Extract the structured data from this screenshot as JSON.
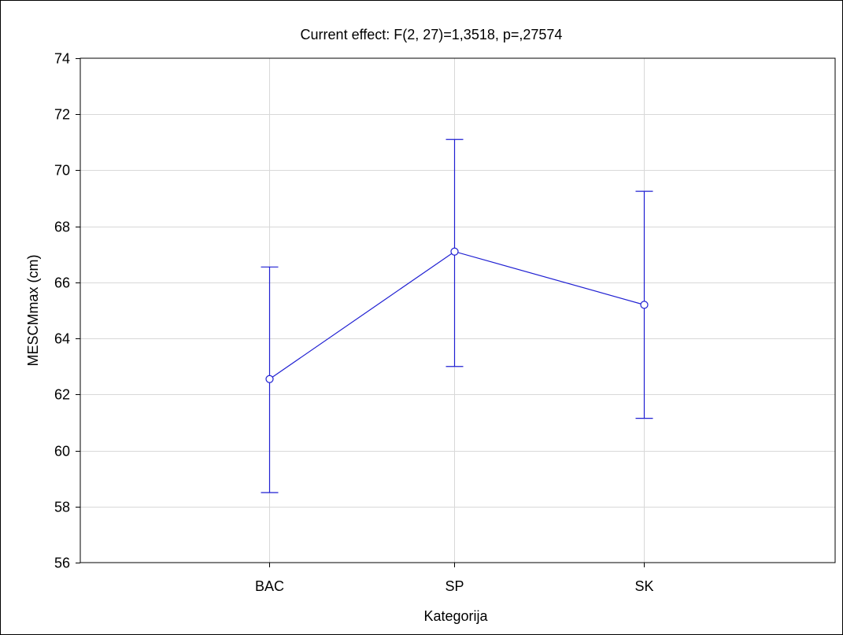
{
  "chart_data": {
    "type": "line",
    "title": "Current effect: F(2, 27)=1,3518, p=,27574",
    "xlabel": "Kategorija",
    "ylabel": "MESCMmax (cm)",
    "categories": [
      "BAC",
      "SP",
      "SK"
    ],
    "series": [
      {
        "values": [
          62.55,
          67.1,
          65.2
        ],
        "lower": [
          58.5,
          63.0,
          61.15
        ],
        "upper": [
          66.55,
          71.1,
          69.25
        ]
      }
    ],
    "ylim": [
      56,
      74
    ],
    "yticks": [
      56,
      58,
      60,
      62,
      64,
      66,
      68,
      70,
      72,
      74
    ],
    "grid": true,
    "colors": {
      "series": "#1f1fd2",
      "grid": "#d8d8d8",
      "axis": "#000000"
    }
  }
}
